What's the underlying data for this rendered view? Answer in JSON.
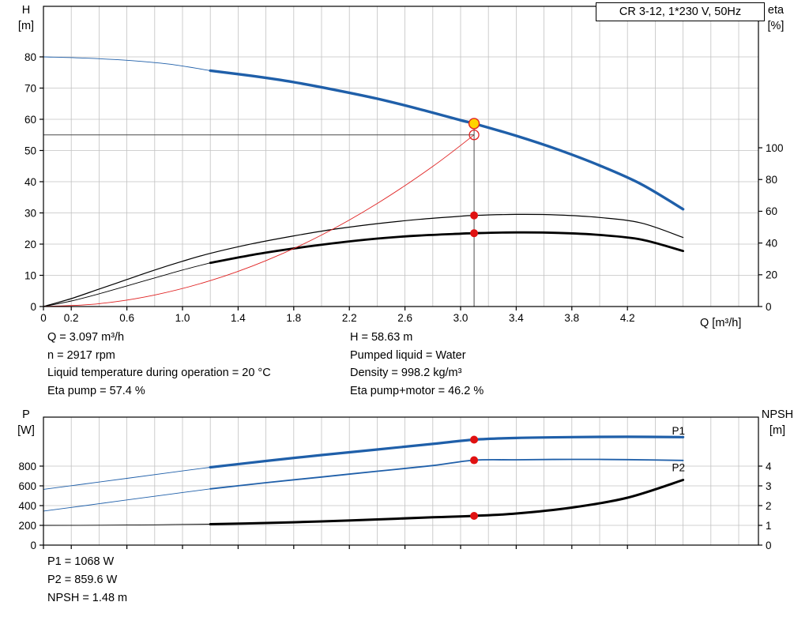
{
  "title_box": "CR 3-12, 1*230 V, 50Hz",
  "labels": {
    "h": "H",
    "h_unit": "[m]",
    "eta": "eta",
    "eta_unit": "[%]",
    "q": "Q [m³/h]",
    "p": "P",
    "p_unit": "[W]",
    "npsh": "NPSH",
    "npsh_unit": "[m]"
  },
  "info_top_left": [
    "Q = 3.097 m³/h",
    "n = 2917 rpm",
    "Liquid temperature during operation = 20 °C",
    "Eta pump = 57.4 %"
  ],
  "info_top_right": [
    "H = 58.63 m",
    "Pumped liquid = Water",
    "Density = 998.2 kg/m³",
    "Eta pump+motor = 46.2 %"
  ],
  "info_bottom": [
    "P1 = 1068 W",
    "P2 = 859.6 W",
    "NPSH = 1.48 m"
  ],
  "colors": {
    "curve_blue": "#1f5fa9",
    "curve_black": "#000000",
    "curve_red": "#e02222",
    "grid": "#c2c2c2",
    "marker_red": "#e01111",
    "marker_yellow": "#ffd400",
    "axis": "#000000"
  },
  "chart_data": [
    {
      "name": "qh-eta-chart",
      "type": "line",
      "title": "CR 3-12, 1*230 V, 50Hz",
      "xlabel": "Q [m³/h]",
      "ylabel_left": "H [m]",
      "ylabel_right": "eta [%]",
      "x_axis": {
        "min": 0,
        "max": 5.142,
        "grid_step": 0.2,
        "ticks": [
          [
            0,
            "0"
          ],
          [
            0.2,
            "0.2"
          ],
          [
            0.6,
            "0.6"
          ],
          [
            1.0,
            "1.0"
          ],
          [
            1.4,
            "1.4"
          ],
          [
            1.8,
            "1.8"
          ],
          [
            2.2,
            "2.2"
          ],
          [
            2.6,
            "2.6"
          ],
          [
            3.0,
            "3.0"
          ],
          [
            3.4,
            "3.4"
          ],
          [
            3.8,
            "3.8"
          ],
          [
            4.2,
            "4.2"
          ]
        ]
      },
      "left_axis": {
        "min": 0,
        "max": 96.2,
        "ticks": [
          [
            0,
            "0"
          ],
          [
            10,
            "10"
          ],
          [
            20,
            "20"
          ],
          [
            30,
            "30"
          ],
          [
            40,
            "40"
          ],
          [
            50,
            "50"
          ],
          [
            60,
            "60"
          ],
          [
            70,
            "70"
          ],
          [
            80,
            "80"
          ]
        ]
      },
      "right_axis": {
        "min": 0,
        "max": 189.1,
        "ticks": [
          [
            0,
            "0"
          ],
          [
            20,
            "20"
          ],
          [
            40,
            "40"
          ],
          [
            60,
            "60"
          ],
          [
            80,
            "80"
          ],
          [
            100,
            "100"
          ]
        ]
      },
      "series": [
        {
          "name": "head-curve-low",
          "axis": "left",
          "color": "#1f5fa9",
          "width": 0.9,
          "points": [
            [
              0,
              80
            ],
            [
              0.3,
              79.6
            ],
            [
              0.6,
              78.9
            ],
            [
              0.9,
              77.7
            ],
            [
              1.2,
              75.6
            ]
          ]
        },
        {
          "name": "head-curve",
          "axis": "left",
          "color": "#1f5fa9",
          "width": 3.4,
          "points": [
            [
              1.2,
              75.6
            ],
            [
              1.5,
              73.9
            ],
            [
              1.8,
              71.9
            ],
            [
              2.1,
              69.4
            ],
            [
              2.4,
              66.6
            ],
            [
              2.7,
              63.3
            ],
            [
              3.0,
              59.7
            ],
            [
              3.097,
              58.63
            ],
            [
              3.4,
              54.7
            ],
            [
              3.7,
              50.3
            ],
            [
              4.0,
              45.2
            ],
            [
              4.3,
              39.2
            ],
            [
              4.6,
              31.2
            ]
          ]
        },
        {
          "name": "eta-pump-curve",
          "axis": "right",
          "color": "#000000",
          "width": 1.2,
          "points": [
            [
              0,
              0
            ],
            [
              0.2,
              5
            ],
            [
              0.4,
              11
            ],
            [
              0.6,
              17
            ],
            [
              0.8,
              23
            ],
            [
              1.0,
              28.5
            ],
            [
              1.2,
              33.5
            ],
            [
              1.5,
              39.5
            ],
            [
              1.8,
              44.5
            ],
            [
              2.1,
              48.8
            ],
            [
              2.4,
              52.2
            ],
            [
              2.7,
              54.9
            ],
            [
              3.0,
              56.9
            ],
            [
              3.097,
              57.4
            ],
            [
              3.4,
              58
            ],
            [
              3.7,
              57.7
            ],
            [
              4.0,
              56.1
            ],
            [
              4.3,
              52.6
            ],
            [
              4.6,
              43.5
            ]
          ]
        },
        {
          "name": "eta-pump-motor-curve-low",
          "axis": "right",
          "color": "#000000",
          "width": 0.9,
          "points": [
            [
              0,
              0
            ],
            [
              0.2,
              3.5
            ],
            [
              0.4,
              8
            ],
            [
              0.6,
              13
            ],
            [
              0.8,
              18
            ],
            [
              1.0,
              23
            ],
            [
              1.2,
              27.5
            ]
          ]
        },
        {
          "name": "eta-pump-motor-curve",
          "axis": "right",
          "color": "#000000",
          "width": 2.8,
          "points": [
            [
              1.2,
              27.5
            ],
            [
              1.5,
              32.5
            ],
            [
              1.8,
              36.6
            ],
            [
              2.1,
              40
            ],
            [
              2.4,
              42.8
            ],
            [
              2.7,
              44.7
            ],
            [
              3.0,
              45.9
            ],
            [
              3.097,
              46.2
            ],
            [
              3.4,
              46.7
            ],
            [
              3.7,
              46.4
            ],
            [
              4.0,
              45.1
            ],
            [
              4.3,
              42.2
            ],
            [
              4.6,
              35
            ]
          ]
        },
        {
          "name": "system-curve",
          "axis": "left",
          "color": "#e02222",
          "width": 0.9,
          "points": [
            [
              0,
              0
            ],
            [
              0.4,
              0.9
            ],
            [
              0.8,
              3.7
            ],
            [
              1.2,
              8.3
            ],
            [
              1.6,
              14.7
            ],
            [
              2.0,
              22.9
            ],
            [
              2.4,
              33
            ],
            [
              2.8,
              44.9
            ],
            [
              3.097,
              55
            ]
          ]
        }
      ],
      "guides": [
        {
          "dir": "h",
          "axis": "left",
          "at": 55,
          "from": 0,
          "to": 3.097,
          "color": "#4a4a4a",
          "width": 0.9
        },
        {
          "dir": "v",
          "axis": "left",
          "at": 3.097,
          "from": 58.63,
          "to": 0,
          "color": "#3a3a3a",
          "width": 0.9
        }
      ],
      "markers": [
        {
          "x": 3.097,
          "y": 55,
          "axis": "left",
          "r": 6,
          "fill": "none",
          "stroke": "#e02222",
          "sw": 1.3,
          "name": "requested-duty-point"
        },
        {
          "x": 3.097,
          "y": 57.4,
          "axis": "right",
          "r": 5,
          "fill": "#e01111",
          "stroke": "none",
          "sw": 0,
          "name": "eta-pump-point"
        },
        {
          "x": 3.097,
          "y": 46.2,
          "axis": "right",
          "r": 5,
          "fill": "#e01111",
          "stroke": "none",
          "sw": 0,
          "name": "eta-pump-motor-point"
        },
        {
          "x": 3.097,
          "y": 58.63,
          "axis": "left",
          "r": 6.5,
          "fill": "#ffd400",
          "stroke": "#e02222",
          "sw": 1.4,
          "name": "duty-point"
        }
      ],
      "annotations": []
    },
    {
      "name": "power-npsh-chart",
      "type": "line",
      "xlabel": "",
      "ylabel_left": "P [W]",
      "ylabel_right": "NPSH [m]",
      "x_axis": {
        "min": 0,
        "max": 5.142,
        "grid_step": 0.2,
        "ticks": [
          [
            0,
            ""
          ],
          [
            0.2,
            ""
          ],
          [
            0.6,
            ""
          ],
          [
            1.0,
            ""
          ],
          [
            1.4,
            ""
          ],
          [
            1.8,
            ""
          ],
          [
            2.2,
            ""
          ],
          [
            2.6,
            ""
          ],
          [
            3.0,
            ""
          ],
          [
            3.4,
            ""
          ],
          [
            3.8,
            ""
          ],
          [
            4.2,
            ""
          ]
        ]
      },
      "left_axis": {
        "min": 0,
        "max": 1296,
        "ticks": [
          [
            0,
            "0"
          ],
          [
            200,
            "200"
          ],
          [
            400,
            "400"
          ],
          [
            600,
            "600"
          ],
          [
            800,
            "800"
          ]
        ]
      },
      "right_axis": {
        "min": 0,
        "max": 6.48,
        "ticks": [
          [
            0,
            "0"
          ],
          [
            1,
            "1"
          ],
          [
            2,
            "2"
          ],
          [
            3,
            "3"
          ],
          [
            4,
            "4"
          ]
        ]
      },
      "series": [
        {
          "name": "p1-curve-low",
          "axis": "left",
          "color": "#1f5fa9",
          "width": 0.9,
          "points": [
            [
              0,
              565
            ],
            [
              0.3,
              620
            ],
            [
              0.6,
              676
            ],
            [
              0.9,
              733
            ],
            [
              1.2,
              788
            ]
          ]
        },
        {
          "name": "p1-curve",
          "axis": "left",
          "color": "#1f5fa9",
          "width": 3.2,
          "points": [
            [
              1.2,
              788
            ],
            [
              1.6,
              852
            ],
            [
              2.0,
              912
            ],
            [
              2.4,
              968
            ],
            [
              2.8,
              1025
            ],
            [
              3.097,
              1068
            ],
            [
              3.4,
              1085
            ],
            [
              3.8,
              1094
            ],
            [
              4.2,
              1097
            ],
            [
              4.6,
              1094
            ]
          ]
        },
        {
          "name": "p2-curve-low",
          "axis": "left",
          "color": "#1f5fa9",
          "width": 0.9,
          "points": [
            [
              0,
              345
            ],
            [
              0.3,
              400
            ],
            [
              0.6,
              458
            ],
            [
              0.9,
              514
            ],
            [
              1.2,
              570
            ]
          ]
        },
        {
          "name": "p2-curve",
          "axis": "left",
          "color": "#1f5fa9",
          "width": 1.8,
          "points": [
            [
              1.2,
              570
            ],
            [
              1.6,
              632
            ],
            [
              2.0,
              690
            ],
            [
              2.4,
              748
            ],
            [
              2.8,
              806
            ],
            [
              3.097,
              859.6
            ],
            [
              3.4,
              864
            ],
            [
              3.8,
              868
            ],
            [
              4.2,
              866
            ],
            [
              4.6,
              858
            ]
          ]
        },
        {
          "name": "npsh-curve-low",
          "axis": "right",
          "color": "#000000",
          "width": 0.9,
          "points": [
            [
              0,
              1.0
            ],
            [
              0.4,
              1.01
            ],
            [
              0.8,
              1.03
            ],
            [
              1.2,
              1.06
            ]
          ]
        },
        {
          "name": "npsh-curve",
          "axis": "right",
          "color": "#000000",
          "width": 3.0,
          "points": [
            [
              1.2,
              1.06
            ],
            [
              1.6,
              1.12
            ],
            [
              2.0,
              1.2
            ],
            [
              2.4,
              1.3
            ],
            [
              2.8,
              1.41
            ],
            [
              3.097,
              1.48
            ],
            [
              3.4,
              1.6
            ],
            [
              3.8,
              1.9
            ],
            [
              4.2,
              2.4
            ],
            [
              4.6,
              3.3
            ]
          ]
        }
      ],
      "guides": [],
      "markers": [
        {
          "x": 3.097,
          "y": 1068,
          "axis": "left",
          "r": 5,
          "fill": "#e01111",
          "stroke": "none",
          "sw": 0,
          "name": "p1-point"
        },
        {
          "x": 3.097,
          "y": 859.6,
          "axis": "left",
          "r": 5,
          "fill": "#e01111",
          "stroke": "none",
          "sw": 0,
          "name": "p2-point"
        },
        {
          "x": 3.097,
          "y": 1.48,
          "axis": "right",
          "r": 5,
          "fill": "#e01111",
          "stroke": "none",
          "sw": 0,
          "name": "npsh-point"
        }
      ],
      "annotations": [
        {
          "x": 4.52,
          "y": 1120,
          "axis": "left",
          "text": "P1",
          "color": "#1f5fa9"
        },
        {
          "x": 4.52,
          "y": 750,
          "axis": "left",
          "text": "P2",
          "color": "#1f5fa9"
        }
      ]
    }
  ]
}
